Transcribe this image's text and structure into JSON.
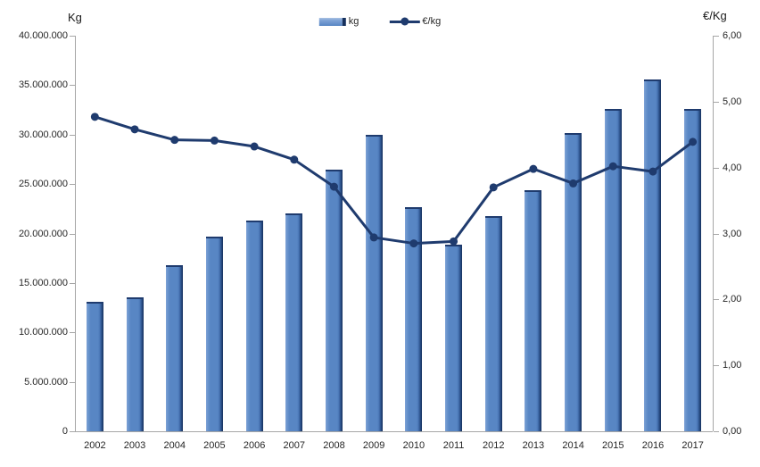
{
  "chart_data": {
    "type": "combo-bar-line",
    "title": "",
    "categories": [
      "2002",
      "2003",
      "2004",
      "2005",
      "2006",
      "2007",
      "2008",
      "2009",
      "2010",
      "2011",
      "2012",
      "2013",
      "2014",
      "2015",
      "2016",
      "2017"
    ],
    "series": [
      {
        "name": "kg",
        "type": "bar",
        "axis": "left",
        "values": [
          13100000,
          13500000,
          16800000,
          19700000,
          21300000,
          22000000,
          26500000,
          30000000,
          22700000,
          18900000,
          21800000,
          24400000,
          30200000,
          32600000,
          35600000,
          32600000
        ]
      },
      {
        "name": "€/kg",
        "type": "line",
        "axis": "right",
        "values": [
          4.77,
          4.58,
          4.42,
          4.41,
          4.32,
          4.12,
          3.71,
          2.94,
          2.85,
          2.88,
          3.7,
          3.98,
          3.76,
          4.02,
          3.94,
          4.39
        ]
      }
    ],
    "left_axis": {
      "title": "Kg",
      "min": 0,
      "max": 40000000,
      "tick_step": 5000000,
      "tick_labels": [
        "0",
        "5.000.000",
        "10.000.000",
        "15.000.000",
        "20.000.000",
        "25.000.000",
        "30.000.000",
        "35.000.000",
        "40.000.000"
      ]
    },
    "right_axis": {
      "title": "€/Kg",
      "min": 0,
      "max": 6,
      "tick_step": 1,
      "tick_labels": [
        "0,00",
        "1,00",
        "2,00",
        "3,00",
        "4,00",
        "5,00",
        "6,00"
      ]
    },
    "legend": {
      "position": "top",
      "entries": [
        "kg",
        "€/kg"
      ]
    },
    "grid": false,
    "colors": {
      "bar_body": "#5886C4",
      "bar_light": "#7FA3D6",
      "bar_dark": "#16305C",
      "bar_cap": "#1F3B6E",
      "line": "#1F3B6E",
      "axis": "#A6A6A6",
      "text": "#262626"
    }
  }
}
